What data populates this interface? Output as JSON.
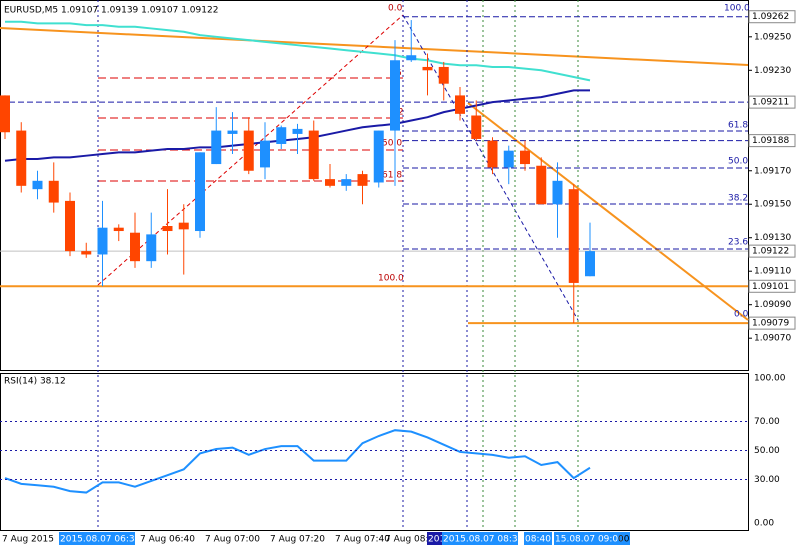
{
  "chart_data": [
    {
      "type": "candlestick",
      "title": "EURUSD,M5  1.09107 1.09139 1.09107 1.09122",
      "bull_color": "#1e90ff",
      "bear_color": "#ff4500",
      "open": [
        1.09215,
        1.09194,
        1.09159,
        1.09164,
        1.09152,
        1.09122,
        1.0912,
        1.09136,
        1.09133,
        1.09116,
        1.09137,
        1.09139,
        1.09134,
        1.09174,
        1.09192,
        1.09194,
        1.09172,
        1.09186,
        1.09192,
        1.09194,
        1.09165,
        1.09161,
        1.09168,
        1.09163,
        1.09194,
        1.09236,
        1.09232,
        1.09232,
        1.09215,
        1.09203,
        1.09188,
        1.09172,
        1.09182,
        1.09173,
        1.0915,
        1.09159,
        1.09107
      ],
      "high": [
        1.09215,
        1.09199,
        1.0917,
        1.09175,
        1.09157,
        1.09127,
        1.09152,
        1.09138,
        1.09145,
        1.09145,
        1.09159,
        1.0915,
        1.09181,
        1.09208,
        1.09205,
        1.09202,
        1.09199,
        1.09197,
        1.09198,
        1.092,
        1.09174,
        1.09168,
        1.0917,
        1.09194,
        1.09248,
        1.0926,
        1.0924,
        1.09235,
        1.0922,
        1.09212,
        1.0919,
        1.09185,
        1.09188,
        1.09178,
        1.09175,
        1.09162,
        1.09139
      ],
      "low": [
        1.09189,
        1.09157,
        1.09153,
        1.09145,
        1.09119,
        1.09118,
        1.09101,
        1.09128,
        1.09112,
        1.09112,
        1.0912,
        1.09108,
        1.0913,
        1.09174,
        1.0918,
        1.09168,
        1.09165,
        1.09183,
        1.0918,
        1.09164,
        1.0916,
        1.09158,
        1.0915,
        1.0916,
        1.09161,
        1.09235,
        1.09215,
        1.09212,
        1.092,
        1.09188,
        1.09168,
        1.09162,
        1.0917,
        1.0915,
        1.0913,
        1.09079,
        1.09107
      ],
      "close": [
        1.09193,
        1.09161,
        1.09164,
        1.09151,
        1.09122,
        1.0912,
        1.09136,
        1.09134,
        1.09116,
        1.09132,
        1.09134,
        1.09135,
        1.09181,
        1.09194,
        1.09194,
        1.0917,
        1.09188,
        1.09196,
        1.09195,
        1.09165,
        1.09161,
        1.09165,
        1.09161,
        1.09194,
        1.09236,
        1.09239,
        1.0923,
        1.09222,
        1.09204,
        1.09189,
        1.09172,
        1.09182,
        1.09174,
        1.0915,
        1.09164,
        1.09103,
        1.09122
      ],
      "series": [
        {
          "color": "#40e0d0",
          "values": [
            1.09259,
            1.09259,
            1.09258,
            1.09258,
            1.09258,
            1.09257,
            1.09257,
            1.09256,
            1.09256,
            1.09255,
            1.09254,
            1.09253,
            1.09251,
            1.0925,
            1.09249,
            1.09248,
            1.09247,
            1.09246,
            1.09245,
            1.09244,
            1.09243,
            1.09242,
            1.09241,
            1.0924,
            1.09239,
            1.09237,
            1.09236,
            1.09234,
            1.09233,
            1.09233,
            1.09232,
            1.09232,
            1.09231,
            1.0923,
            1.09228,
            1.09226,
            1.09224
          ]
        },
        {
          "color": "#1a1aa6",
          "values": [
            1.09176,
            1.09177,
            1.09177,
            1.09178,
            1.09178,
            1.09179,
            1.0918,
            1.09181,
            1.09181,
            1.09182,
            1.09183,
            1.09183,
            1.09184,
            1.09184,
            1.09185,
            1.09186,
            1.09187,
            1.09188,
            1.09189,
            1.0919,
            1.09192,
            1.09194,
            1.09196,
            1.09197,
            1.09198,
            1.092,
            1.09202,
            1.09205,
            1.09207,
            1.09209,
            1.09211,
            1.09212,
            1.09213,
            1.09214,
            1.09216,
            1.09218,
            1.09218
          ]
        }
      ],
      "ylim": [
        1.09051,
        1.09269
      ],
      "yticks": [
        {
          "value": 1.0925,
          "label": "1.09250"
        },
        {
          "value": 1.0923,
          "label": "1.09230"
        },
        {
          "value": 1.0917,
          "label": "1.09170"
        },
        {
          "value": 1.0915,
          "label": "1.09150"
        },
        {
          "value": 1.0913,
          "label": "1.09130"
        },
        {
          "value": 1.0911,
          "label": "1.09110"
        },
        {
          "value": 1.0909,
          "label": "1.09090"
        },
        {
          "value": 1.0907,
          "label": "1.09070"
        }
      ],
      "price_lines": [
        1.09262,
        1.09211,
        1.09188,
        1.09122,
        1.09101,
        1.09079
      ],
      "annotations": [
        "0.0",
        ".6",
        ".2",
        "50.0",
        "61.8",
        "100.0",
        "100.0",
        "61.8",
        "50.0",
        "38.2",
        "23.6",
        "0.0"
      ],
      "time_labels": [
        "7 Aug 2015",
        "2015.08.07 06:30",
        "7 Aug 06:40",
        "7 Aug 07:00",
        "7 Aug 07:20",
        "7 Aug 07:40",
        "7 Aug 08:",
        "201",
        "2015.08.07 08:30",
        "08:40",
        "15.08.07 09:00",
        "00"
      ]
    },
    {
      "type": "line",
      "title": "RSI(14) 38.12",
      "color": "#1e90ff",
      "values": [
        31,
        27,
        26,
        25,
        22,
        21,
        28,
        28,
        25,
        29,
        33,
        37,
        48,
        51,
        52,
        47,
        51,
        53,
        53,
        43,
        43,
        43,
        55,
        60,
        64,
        63,
        59,
        54,
        49,
        48,
        47,
        45,
        46,
        40,
        42,
        31,
        38.12
      ],
      "ylim": [
        0,
        100
      ],
      "yticks": [
        {
          "value": 100,
          "label": "100.00"
        },
        {
          "value": 70,
          "label": "70.00"
        },
        {
          "value": 50,
          "label": "50.00"
        },
        {
          "value": 30,
          "label": "30.00"
        },
        {
          "value": 0,
          "label": "0.00"
        }
      ]
    }
  ]
}
